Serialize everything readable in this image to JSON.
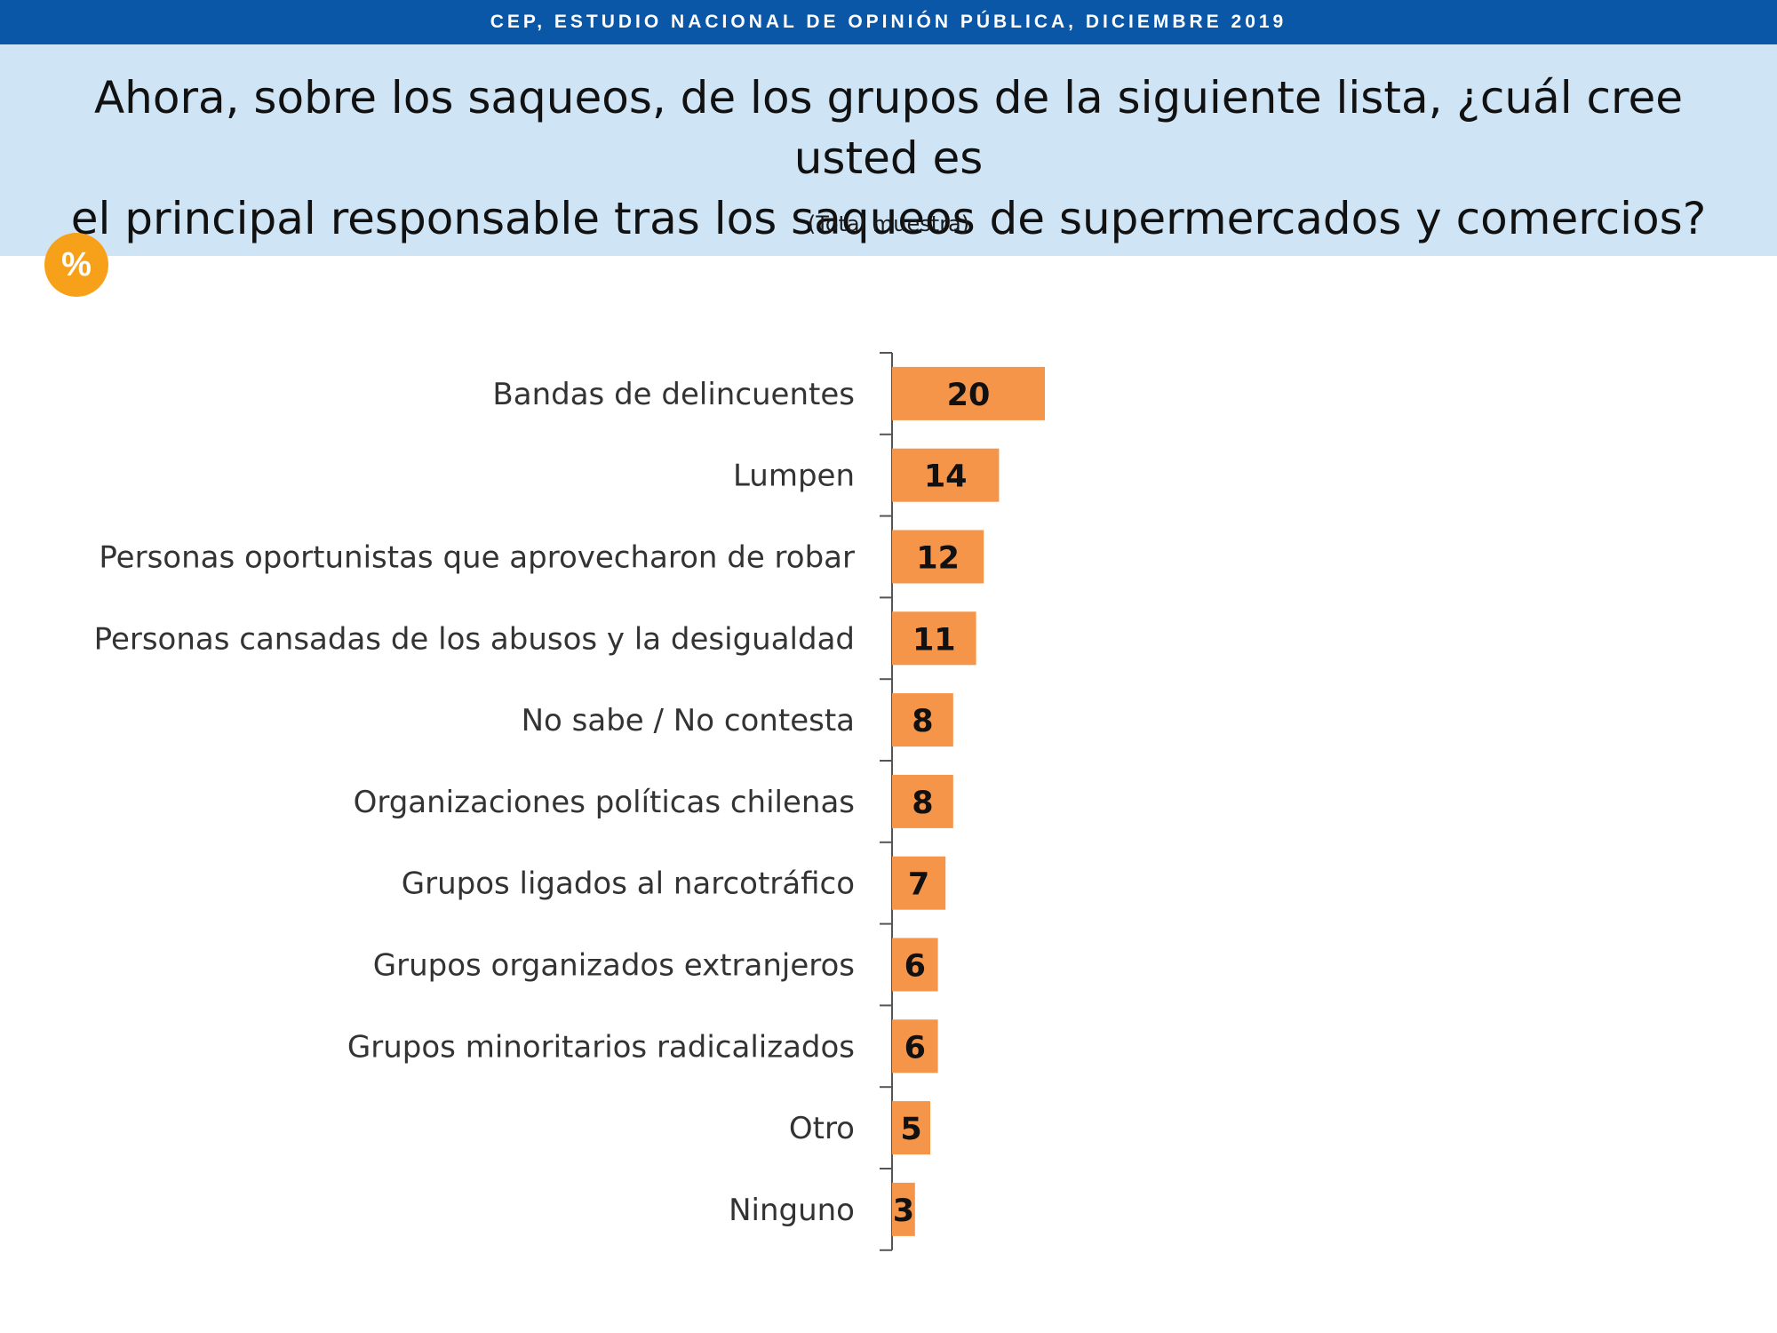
{
  "header": {
    "banner": "CEP, ESTUDIO NACIONAL DE OPINIÓN PÚBLICA, DICIEMBRE 2019",
    "question_line1": "Ahora, sobre los saqueos, de los grupos de la siguiente lista, ¿cuál cree usted es",
    "question_line2": "el principal responsable tras los saqueos de supermercados y comercios?",
    "subtitle": "(Total muestra)",
    "badge": "%"
  },
  "colors": {
    "banner": "#0a57a8",
    "header_bg": "#cfe5f6",
    "badge": "#f7a11a",
    "bar": "#f5954a"
  },
  "chart_data": {
    "type": "bar",
    "orientation": "horizontal",
    "categories": [
      "Bandas de delincuentes",
      "Lumpen",
      "Personas oportunistas que aprovecharon de robar",
      "Personas cansadas de los abusos y la desigualdad",
      "No sabe / No contesta",
      "Organizaciones políticas chilenas",
      "Grupos ligados al narcotráfico",
      "Grupos organizados extranjeros",
      "Grupos minoritarios radicalizados",
      "Otro",
      "Ninguno"
    ],
    "values": [
      20,
      14,
      12,
      11,
      8,
      8,
      7,
      6,
      6,
      5,
      3
    ],
    "data_labels": true,
    "grid": false,
    "legend": "none"
  }
}
